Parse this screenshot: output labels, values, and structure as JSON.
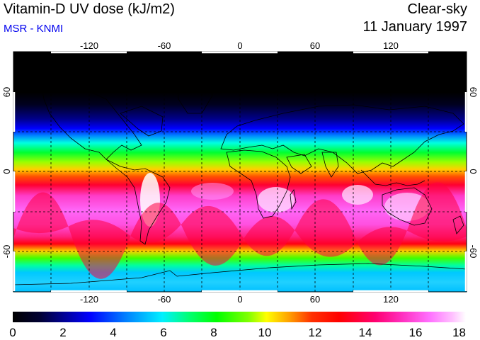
{
  "header": {
    "title": "Vitamin-D UV dose (kJ/m2)",
    "subtitle": "MSR - KNMI",
    "condition": "Clear-sky",
    "date": "11 January 1997"
  },
  "colors": {
    "subtitle": "#0000ee",
    "gradient_stops": [
      "#000000",
      "#000033",
      "#00007a",
      "#0000ff",
      "#0080ff",
      "#00f0ff",
      "#00ff70",
      "#00ff00",
      "#80ff00",
      "#ffff00",
      "#ffa000",
      "#ff3000",
      "#ff0000",
      "#ff0070",
      "#ff30c0",
      "#ff70ff",
      "#ffc0ff",
      "#ffffff"
    ]
  },
  "map": {
    "longitude_ticks": [
      -120,
      -60,
      0,
      60,
      120
    ],
    "latitude_ticks": [
      60,
      0,
      -60
    ],
    "longitude_tick_labels": [
      "-120",
      "-60",
      "0",
      "60",
      "120"
    ],
    "latitude_tick_labels": [
      "60",
      "0",
      "-60"
    ]
  },
  "colorbar": {
    "labels": [
      "0",
      "2",
      "4",
      "6",
      "8",
      "10",
      "12",
      "14",
      "16",
      "18"
    ],
    "min": 0,
    "max": 18
  }
}
